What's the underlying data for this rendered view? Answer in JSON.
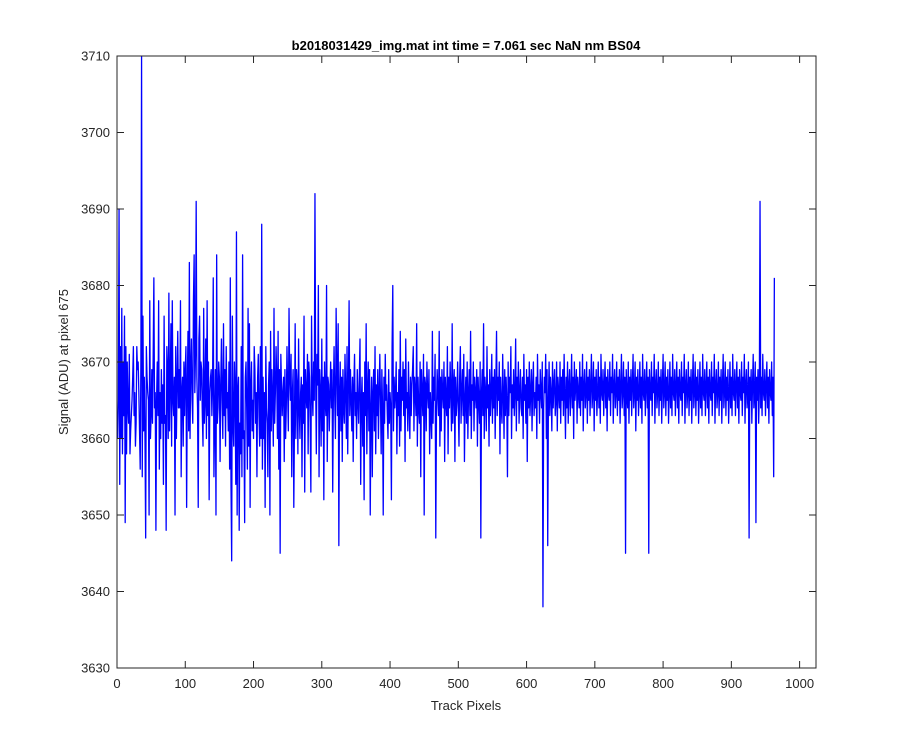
{
  "chart_data": {
    "type": "line",
    "title": "b2018031429_img.mat int time = 7.061 sec  NaN nm BS04",
    "xlabel": "Track Pixels",
    "ylabel": "Signal (ADU) at pixel 675",
    "xlim": [
      0,
      1024
    ],
    "ylim": [
      3630,
      3710
    ],
    "xticks": [
      0,
      100,
      200,
      300,
      400,
      500,
      600,
      700,
      800,
      900,
      1000
    ],
    "yticks": [
      3630,
      3640,
      3650,
      3660,
      3670,
      3680,
      3690,
      3700,
      3710
    ],
    "grid": false,
    "legend": "none",
    "series": [
      {
        "color": "#0000ff",
        "x_start": 1,
        "x_step": 1,
        "values": [
          3660,
          3665,
          3690,
          3654,
          3672,
          3660,
          3677,
          3658,
          3670,
          3663,
          3676,
          3649,
          3672,
          3658,
          3670,
          3664,
          3662,
          3671,
          3658,
          3661,
          3663,
          3665,
          3668,
          3672,
          3663,
          3666,
          3659,
          3662,
          3672,
          3669,
          3670,
          3666,
          3661,
          3656,
          3670,
          3710,
          3655,
          3676,
          3661,
          3668,
          3660,
          3647,
          3672,
          3668,
          3666,
          3665,
          3650,
          3678,
          3660,
          3663,
          3669,
          3662,
          3671,
          3681,
          3664,
          3666,
          3648,
          3665,
          3670,
          3663,
          3678,
          3656,
          3666,
          3660,
          3669,
          3662,
          3667,
          3654,
          3676,
          3662,
          3663,
          3648,
          3672,
          3669,
          3660,
          3679,
          3661,
          3667,
          3675,
          3659,
          3678,
          3665,
          3663,
          3668,
          3650,
          3672,
          3660,
          3667,
          3674,
          3664,
          3669,
          3664,
          3678,
          3655,
          3666,
          3668,
          3659,
          3670,
          3663,
          3669,
          3672,
          3651,
          3667,
          3674,
          3661,
          3683,
          3660,
          3669,
          3673,
          3665,
          3662,
          3678,
          3684,
          3666,
          3671,
          3691,
          3668,
          3664,
          3651,
          3673,
          3676,
          3665,
          3670,
          3669,
          3663,
          3659,
          3677,
          3662,
          3665,
          3673,
          3660,
          3678,
          3663,
          3670,
          3652,
          3666,
          3668,
          3669,
          3663,
          3667,
          3681,
          3655,
          3662,
          3669,
          3650,
          3684,
          3662,
          3664,
          3670,
          3668,
          3657,
          3667,
          3673,
          3665,
          3660,
          3675,
          3663,
          3669,
          3659,
          3672,
          3664,
          3666,
          3661,
          3670,
          3656,
          3681,
          3654,
          3644,
          3676,
          3662,
          3659,
          3670,
          3666,
          3654,
          3687,
          3650,
          3666,
          3668,
          3648,
          3662,
          3658,
          3672,
          3655,
          3684,
          3660,
          3661,
          3649,
          3668,
          3670,
          3664,
          3656,
          3677,
          3659,
          3675,
          3651,
          3667,
          3670,
          3661,
          3665,
          3660,
          3672,
          3669,
          3662,
          3666,
          3655,
          3668,
          3671,
          3663,
          3659,
          3672,
          3660,
          3688,
          3656,
          3668,
          3660,
          3666,
          3651,
          3672,
          3664,
          3662,
          3655,
          3667,
          3670,
          3650,
          3674,
          3661,
          3669,
          3665,
          3659,
          3677,
          3662,
          3666,
          3672,
          3668,
          3660,
          3674,
          3656,
          3669,
          3645,
          3671,
          3667,
          3663,
          3666,
          3668,
          3657,
          3669,
          3660,
          3664,
          3672,
          3666,
          3661,
          3677,
          3668,
          3665,
          3671,
          3655,
          3666,
          3669,
          3651,
          3662,
          3675,
          3660,
          3669,
          3667,
          3658,
          3673,
          3664,
          3660,
          3666,
          3668,
          3655,
          3667,
          3662,
          3676,
          3653,
          3669,
          3666,
          3664,
          3671,
          3658,
          3670,
          3668,
          3662,
          3653,
          3676,
          3666,
          3663,
          3670,
          3665,
          3692,
          3668,
          3658,
          3671,
          3667,
          3680,
          3655,
          3669,
          3666,
          3659,
          3673,
          3661,
          3668,
          3652,
          3670,
          3665,
          3663,
          3680,
          3657,
          3668,
          3667,
          3661,
          3666,
          3670,
          3664,
          3669,
          3653,
          3666,
          3672,
          3665,
          3660,
          3677,
          3669,
          3663,
          3675,
          3646,
          3666,
          3670,
          3661,
          3668,
          3657,
          3669,
          3664,
          3662,
          3671,
          3666,
          3660,
          3672,
          3658,
          3667,
          3678,
          3663,
          3669,
          3665,
          3661,
          3668,
          3657,
          3667,
          3671,
          3663,
          3666,
          3660,
          3669,
          3665,
          3662,
          3668,
          3673,
          3654,
          3665,
          3668,
          3659,
          3666,
          3652,
          3670,
          3663,
          3675,
          3658,
          3666,
          3670,
          3661,
          3669,
          3650,
          3664,
          3668,
          3655,
          3666,
          3669,
          3661,
          3672,
          3658,
          3667,
          3663,
          3669,
          3660,
          3666,
          3671,
          3665,
          3658,
          3669,
          3664,
          3650,
          3668,
          3662,
          3671,
          3665,
          3667,
          3663,
          3660,
          3669,
          3662,
          3666,
          3664,
          3652,
          3672,
          3680,
          3661,
          3668,
          3664,
          3666,
          3670,
          3658,
          3666,
          3663,
          3669,
          3659,
          3674,
          3661,
          3668,
          3665,
          3670,
          3663,
          3669,
          3657,
          3673,
          3664,
          3666,
          3661,
          3670,
          3664,
          3660,
          3668,
          3663,
          3667,
          3669,
          3672,
          3661,
          3668,
          3666,
          3663,
          3675,
          3659,
          3668,
          3664,
          3662,
          3670,
          3655,
          3669,
          3666,
          3663,
          3671,
          3650,
          3668,
          3667,
          3661,
          3670,
          3666,
          3664,
          3669,
          3658,
          3666,
          3663,
          3660,
          3674,
          3662,
          3668,
          3665,
          3671,
          3647,
          3663,
          3669,
          3666,
          3663,
          3674,
          3659,
          3668,
          3661,
          3669,
          3666,
          3664,
          3670,
          3657,
          3668,
          3665,
          3663,
          3672,
          3658,
          3668,
          3664,
          3670,
          3666,
          3661,
          3675,
          3662,
          3667,
          3669,
          3657,
          3668,
          3663,
          3665,
          3670,
          3664,
          3659,
          3668,
          3672,
          3662,
          3666,
          3669,
          3663,
          3671,
          3657,
          3665,
          3668,
          3662,
          3670,
          3660,
          3666,
          3669,
          3663,
          3674,
          3660,
          3667,
          3665,
          3670,
          3661,
          3668,
          3666,
          3664,
          3669,
          3659,
          3668,
          3665,
          3662,
          3670,
          3647,
          3666,
          3669,
          3663,
          3675,
          3660,
          3668,
          3666,
          3661,
          3672,
          3664,
          3667,
          3659,
          3669,
          3663,
          3666,
          3671,
          3662,
          3668,
          3664,
          3669,
          3660,
          3667,
          3674,
          3663,
          3668,
          3665,
          3670,
          3658,
          3668,
          3664,
          3662,
          3671,
          3666,
          3660,
          3669,
          3663,
          3668,
          3665,
          3655,
          3670,
          3663,
          3668,
          3666,
          3672,
          3660,
          3667,
          3664,
          3669,
          3663,
          3666,
          3673,
          3661,
          3668,
          3665,
          3670,
          3662,
          3666,
          3669,
          3664,
          3663,
          3668,
          3660,
          3671,
          3665,
          3667,
          3662,
          3669,
          3657,
          3668,
          3664,
          3670,
          3663,
          3666,
          3669,
          3661,
          3667,
          3670,
          3663,
          3666,
          3664,
          3668,
          3660,
          3671,
          3665,
          3667,
          3662,
          3669,
          3666,
          3664,
          3670,
          3638,
          3664,
          3668,
          3666,
          3671,
          3660,
          3669,
          3646,
          3665,
          3670,
          3663,
          3668,
          3666,
          3661,
          3670,
          3664,
          3667,
          3669,
          3663,
          3665,
          3670,
          3661,
          3668,
          3666,
          3664,
          3670,
          3662,
          3668,
          3665,
          3669,
          3663,
          3671,
          3666,
          3660,
          3668,
          3664,
          3670,
          3662,
          3667,
          3669,
          3663,
          3666,
          3671,
          3664,
          3668,
          3660,
          3670,
          3665,
          3667,
          3669,
          3662,
          3668,
          3666,
          3664,
          3670,
          3663,
          3668,
          3665,
          3671,
          3661,
          3667,
          3669,
          3664,
          3666,
          3670,
          3662,
          3668,
          3665,
          3669,
          3663,
          3667,
          3671,
          3664,
          3666,
          3670,
          3661,
          3668,
          3665,
          3669,
          3663,
          3666,
          3670,
          3664,
          3668,
          3662,
          3671,
          3666,
          3665,
          3669,
          3663,
          3667,
          3670,
          3664,
          3668,
          3661,
          3669,
          3666,
          3665,
          3670,
          3663,
          3668,
          3666,
          3671,
          3662,
          3667,
          3669,
          3664,
          3666,
          3670,
          3663,
          3668,
          3665,
          3669,
          3662,
          3667,
          3671,
          3664,
          3666,
          3670,
          3663,
          3668,
          3645,
          3669,
          3666,
          3664,
          3670,
          3662,
          3668,
          3665,
          3669,
          3663,
          3667,
          3671,
          3664,
          3666,
          3670,
          3661,
          3668,
          3665,
          3669,
          3663,
          3666,
          3670,
          3664,
          3668,
          3662,
          3671,
          3666,
          3665,
          3669,
          3663,
          3667,
          3670,
          3664,
          3668,
          3645,
          3669,
          3666,
          3665,
          3670,
          3663,
          3668,
          3666,
          3671,
          3662,
          3667,
          3669,
          3664,
          3666,
          3670,
          3663,
          3668,
          3665,
          3669,
          3662,
          3667,
          3671,
          3664,
          3666,
          3670,
          3663,
          3668,
          3665,
          3669,
          3662,
          3666,
          3670,
          3664,
          3668,
          3663,
          3671,
          3666,
          3665,
          3669,
          3663,
          3667,
          3670,
          3664,
          3668,
          3662,
          3669,
          3666,
          3665,
          3670,
          3663,
          3668,
          3666,
          3671,
          3662,
          3667,
          3669,
          3664,
          3666,
          3670,
          3663,
          3668,
          3665,
          3669,
          3662,
          3667,
          3671,
          3664,
          3666,
          3670,
          3663,
          3668,
          3665,
          3669,
          3662,
          3666,
          3670,
          3664,
          3668,
          3663,
          3671,
          3666,
          3665,
          3669,
          3663,
          3667,
          3670,
          3664,
          3668,
          3662,
          3669,
          3666,
          3665,
          3670,
          3663,
          3668,
          3666,
          3671,
          3662,
          3667,
          3669,
          3664,
          3666,
          3670,
          3663,
          3668,
          3665,
          3669,
          3662,
          3667,
          3671,
          3664,
          3666,
          3670,
          3663,
          3668,
          3665,
          3669,
          3662,
          3666,
          3670,
          3664,
          3668,
          3663,
          3671,
          3666,
          3665,
          3669,
          3663,
          3667,
          3670,
          3664,
          3668,
          3662,
          3669,
          3666,
          3665,
          3670,
          3663,
          3668,
          3666,
          3671,
          3662,
          3667,
          3669,
          3664,
          3666,
          3670,
          3647,
          3668,
          3665,
          3669,
          3662,
          3667,
          3671,
          3664,
          3666,
          3670,
          3649,
          3668,
          3665,
          3669,
          3662,
          3666,
          3691,
          3664,
          3668,
          3663,
          3671,
          3666,
          3665,
          3669,
          3663,
          3667,
          3670,
          3664,
          3668,
          3662,
          3669,
          3666,
          3665,
          3670,
          3663,
          3668,
          3655,
          3681
        ]
      }
    ]
  }
}
